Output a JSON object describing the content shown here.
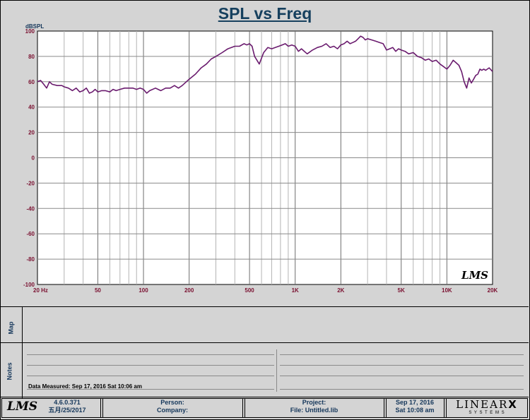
{
  "title": "SPL vs Freq",
  "watermark": "LMS",
  "strips": {
    "map": "Map",
    "notes": "Notes"
  },
  "notes": {
    "data_measured": "Data Measured: Sep 17, 2016  Sat 10:06 am"
  },
  "footer": {
    "logo": "LMS",
    "version": "4.6.0.371",
    "version_date": "五月/25/2017",
    "person_label": "Person:",
    "company_label": "Company:",
    "project_label": "Project:",
    "file_label": "File: Untitled.lib",
    "date": "Sep 17, 2016",
    "time": "Sat 10:08 am",
    "brand": "LINEAR",
    "brand_x": "X",
    "brand_sub": "S Y S T E M S"
  },
  "chart_data": {
    "type": "line",
    "title": "SPL vs Freq",
    "ylabel": "dBSPL",
    "xlabel": "",
    "x_scale": "log",
    "xlim": [
      20,
      20000
    ],
    "ylim": [
      -100,
      100
    ],
    "grid": true,
    "x_ticks": [
      20,
      50,
      100,
      200,
      500,
      1000,
      2000,
      5000,
      10000,
      20000
    ],
    "x_tick_labels": [
      "20  Hz",
      "50",
      "100",
      "200",
      "500",
      "1K",
      "2K",
      "5K",
      "10K",
      "20K"
    ],
    "y_ticks": [
      100,
      80,
      60,
      40,
      20,
      0,
      -20,
      -40,
      -60,
      -80,
      -100
    ],
    "line_color": "#6a1b6e",
    "series": [
      {
        "x": [
          20,
          21,
          22,
          23,
          24,
          25,
          27,
          29,
          30,
          32,
          34,
          36,
          38,
          40,
          42,
          44,
          46,
          48,
          50,
          53,
          56,
          60,
          63,
          66,
          70,
          75,
          80,
          85,
          90,
          95,
          100,
          105,
          110,
          120,
          130,
          140,
          150,
          160,
          170,
          180,
          200,
          220,
          240,
          260,
          280,
          300,
          330,
          360,
          400,
          430,
          460,
          480,
          500,
          520,
          540,
          580,
          620,
          660,
          700,
          740,
          780,
          820,
          860,
          900,
          950,
          1000,
          1050,
          1100,
          1200,
          1300,
          1400,
          1500,
          1600,
          1700,
          1800,
          1900,
          2000,
          2100,
          2200,
          2300,
          2400,
          2500,
          2600,
          2700,
          2800,
          2900,
          3000,
          3200,
          3400,
          3600,
          3800,
          4000,
          4200,
          4400,
          4600,
          4800,
          5000,
          5300,
          5600,
          6000,
          6400,
          6800,
          7200,
          7600,
          8000,
          8500,
          9000,
          9500,
          10000,
          10500,
          11000,
          11500,
          12000,
          12500,
          13000,
          13500,
          14000,
          14500,
          15000,
          15500,
          16000,
          16500,
          17000,
          17500,
          18000,
          18500,
          19000,
          20000
        ],
        "y": [
          60,
          61,
          58,
          55,
          60,
          58,
          57,
          57,
          56,
          55,
          53,
          55,
          52,
          53,
          55,
          51,
          52,
          54,
          52,
          53,
          53,
          52,
          54,
          53,
          54,
          55,
          55,
          55,
          54,
          55,
          54,
          51,
          53,
          55,
          53,
          55,
          55,
          57,
          55,
          57,
          62,
          66,
          71,
          74,
          78,
          80,
          83,
          86,
          88,
          88,
          90,
          89,
          90,
          88,
          80,
          74,
          83,
          87,
          86,
          87,
          88,
          89,
          90,
          88,
          89,
          88,
          84,
          86,
          82,
          85,
          87,
          88,
          90,
          87,
          88,
          86,
          89,
          90,
          92,
          90,
          91,
          92,
          94,
          96,
          95,
          93,
          94,
          93,
          92,
          91,
          90,
          85,
          86,
          87,
          84,
          86,
          85,
          84,
          82,
          83,
          80,
          79,
          77,
          78,
          76,
          77,
          74,
          72,
          70,
          73,
          77,
          75,
          73,
          68,
          60,
          55,
          63,
          59,
          62,
          65,
          66,
          70,
          69,
          70,
          69,
          70,
          71,
          68
        ]
      }
    ]
  }
}
